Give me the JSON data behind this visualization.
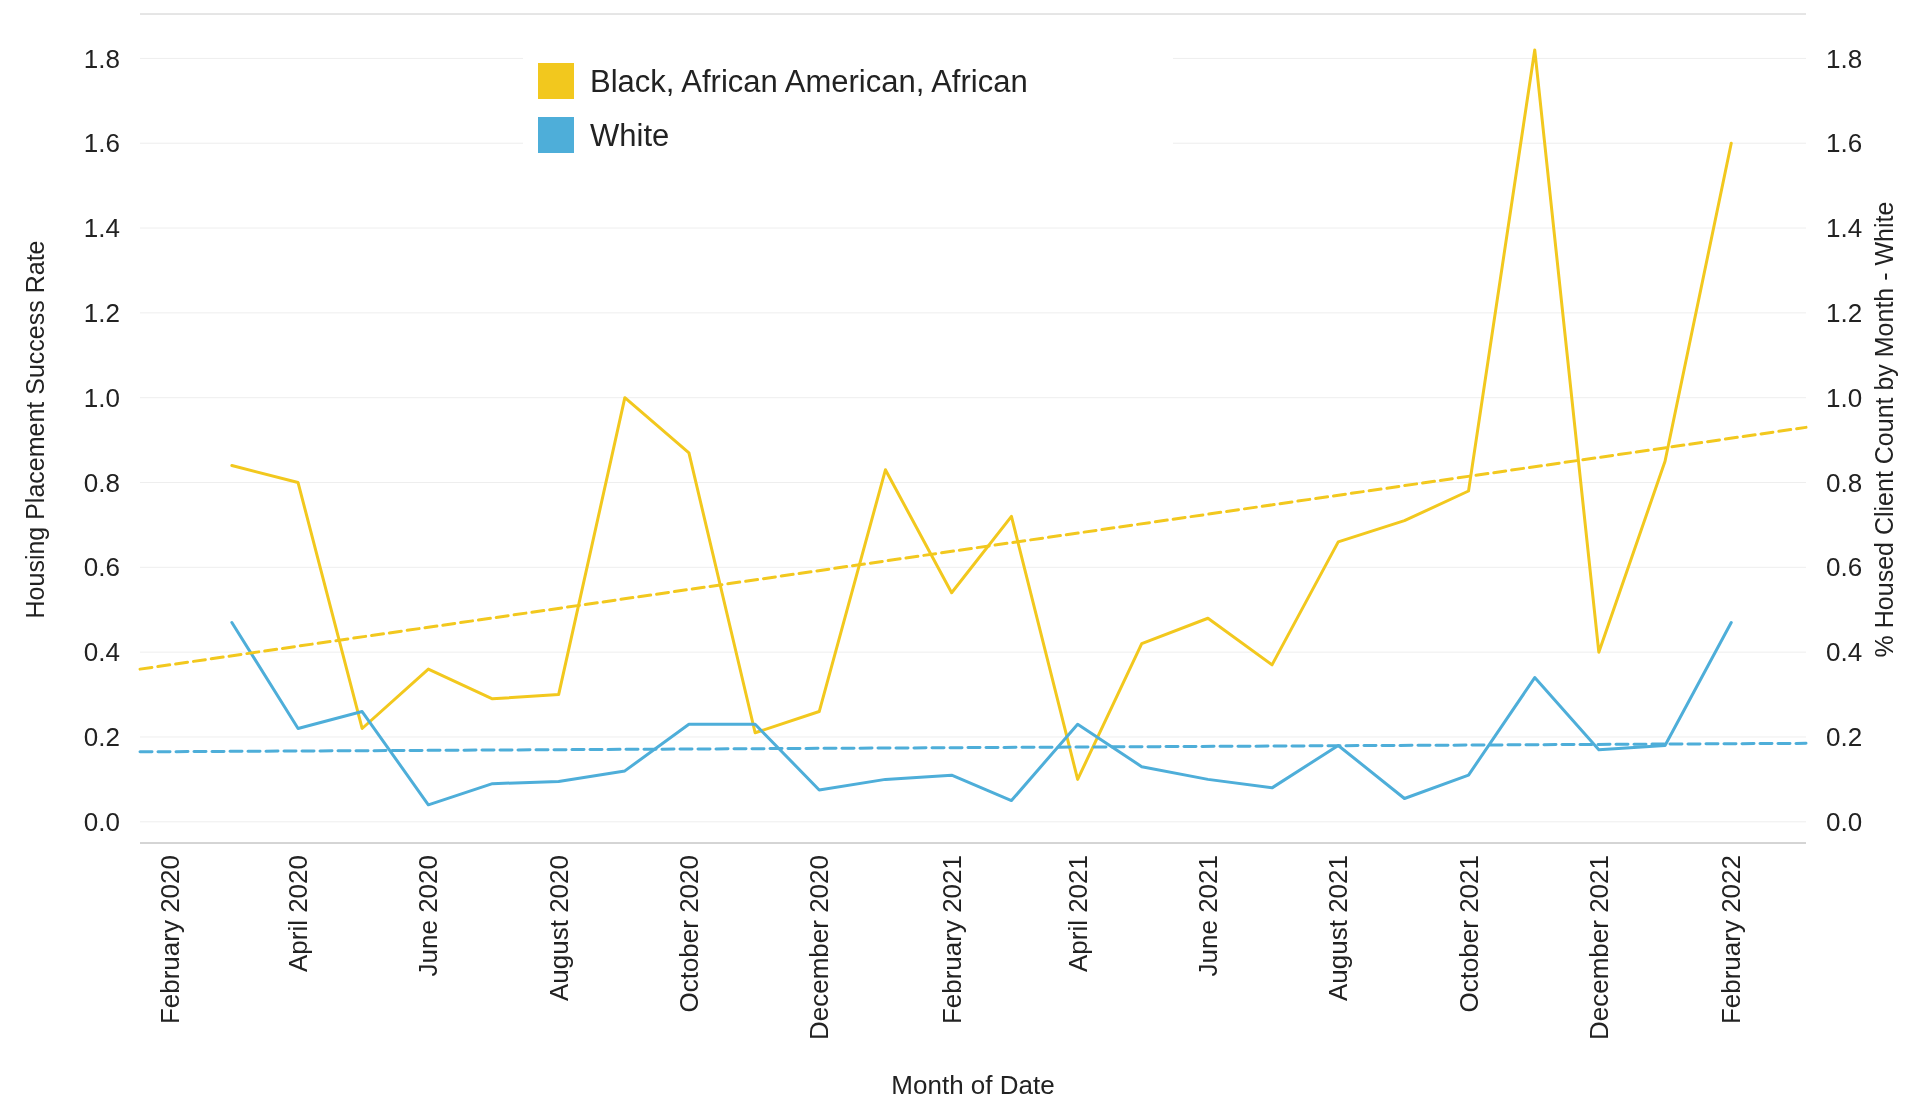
{
  "chart_data": {
    "type": "line",
    "xlabel": "Month of Date",
    "ylabel": "Housing Placement Success Rate",
    "y2label": "% Housed Client Count by Month - White",
    "x": [
      "2020-03",
      "2020-04",
      "2020-05",
      "2020-06",
      "2020-07",
      "2020-08",
      "2020-09",
      "2020-10",
      "2020-11",
      "2020-12",
      "2021-01",
      "2021-02",
      "2021-03",
      "2021-04",
      "2021-05",
      "2021-06",
      "2021-07",
      "2021-08",
      "2021-09",
      "2021-10",
      "2021-11",
      "2021-12",
      "2022-01",
      "2022-02"
    ],
    "series": [
      {
        "name": "Black, African American, African",
        "color": "#f2c81e",
        "values": [
          0.84,
          0.8,
          0.22,
          0.36,
          0.29,
          0.3,
          1.0,
          0.87,
          0.21,
          0.26,
          0.83,
          0.54,
          0.72,
          0.1,
          0.42,
          0.48,
          0.37,
          0.66,
          0.71,
          0.78,
          1.82,
          0.4,
          0.85,
          1.6
        ]
      },
      {
        "name": "White",
        "color": "#4eaed9",
        "values": [
          0.47,
          0.22,
          0.26,
          0.04,
          0.09,
          0.095,
          0.12,
          0.23,
          0.23,
          0.075,
          0.1,
          0.11,
          0.05,
          0.23,
          0.13,
          0.1,
          0.08,
          0.18,
          0.055,
          0.11,
          0.34,
          0.17,
          0.18,
          0.47
        ]
      },
      {
        "type": "line",
        "color": "#f2c81e",
        "line_style": "dashed",
        "x": [
          "2020-01-18",
          "2022-03-08"
        ],
        "values": [
          0.36,
          0.93
        ]
      },
      {
        "type": "line",
        "color": "#4eaed9",
        "line_style": "dashed",
        "x": [
          "2020-01-18",
          "2022-03-08"
        ],
        "values": [
          0.165,
          0.185
        ]
      }
    ],
    "xlim": [
      "2020-01-18",
      "2022-03-08"
    ],
    "xticks": [
      {
        "value": "2020-02",
        "label": "February 2020"
      },
      {
        "value": "2020-04",
        "label": "April 2020"
      },
      {
        "value": "2020-06",
        "label": "June 2020"
      },
      {
        "value": "2020-08",
        "label": "August 2020"
      },
      {
        "value": "2020-10",
        "label": "October 2020"
      },
      {
        "value": "2020-12",
        "label": "December 2020"
      },
      {
        "value": "2021-02",
        "label": "February 2021"
      },
      {
        "value": "2021-04",
        "label": "April 2021"
      },
      {
        "value": "2021-06",
        "label": "June 2021"
      },
      {
        "value": "2021-08",
        "label": "August 2021"
      },
      {
        "value": "2021-10",
        "label": "October 2021"
      },
      {
        "value": "2021-12",
        "label": "December 2021"
      },
      {
        "value": "2022-02",
        "label": "February 2022"
      }
    ],
    "ylim": [
      -0.05,
      1.9
    ],
    "yticks": [
      {
        "value": 0,
        "label": "0.0"
      },
      {
        "value": 0.2,
        "label": "0.2"
      },
      {
        "value": 0.4,
        "label": "0.4"
      },
      {
        "value": 0.6,
        "label": "0.6"
      },
      {
        "value": 0.8,
        "label": "0.8"
      },
      {
        "value": 1,
        "label": "1.0"
      },
      {
        "value": 1.2,
        "label": "1.2"
      },
      {
        "value": 1.4,
        "label": "1.4"
      },
      {
        "value": 1.6,
        "label": "1.6"
      },
      {
        "value": 1.8,
        "label": "1.8"
      }
    ],
    "y2lim": [
      -0.05,
      1.9
    ],
    "y2ticks": [
      {
        "value": 0,
        "label": "0.0"
      },
      {
        "value": 0.2,
        "label": "0.2"
      },
      {
        "value": 0.4,
        "label": "0.4"
      },
      {
        "value": 0.6,
        "label": "0.6"
      },
      {
        "value": 0.8,
        "label": "0.8"
      },
      {
        "value": 1,
        "label": "1.0"
      },
      {
        "value": 1.2,
        "label": "1.2"
      },
      {
        "value": 1.4,
        "label": "1.4"
      },
      {
        "value": 1.6,
        "label": "1.6"
      },
      {
        "value": 1.8,
        "label": "1.8"
      }
    ],
    "grid": "y",
    "legend": "top",
    "marker": "none",
    "line_style": "solid"
  }
}
